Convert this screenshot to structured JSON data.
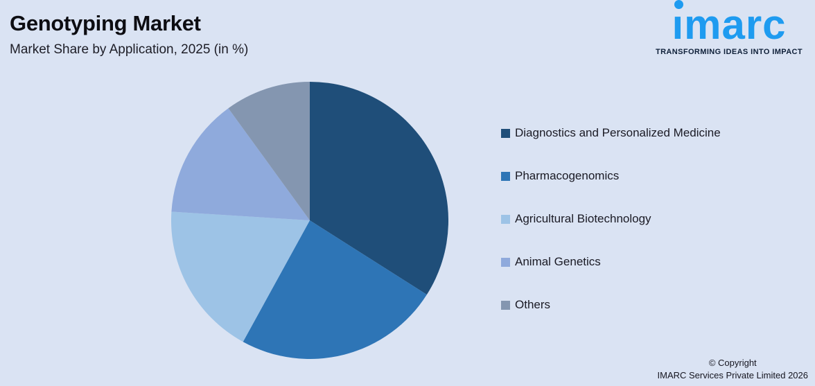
{
  "canvas": {
    "background": "#DAE3F3"
  },
  "header": {
    "title": "Genotyping Market",
    "subtitle": "Market Share by Application, 2025 (in %)"
  },
  "logo": {
    "brand": "imarc",
    "tagline": "TRANSFORMING IDEAS INTO IMPACT",
    "brand_color": "#1E9BF0",
    "tagline_color": "#0E1F38"
  },
  "chart_data": {
    "type": "pie",
    "title": "Genotyping Market",
    "subtitle": "Market Share by Application, 2025 (in %)",
    "unit": "%",
    "start_angle_deg": 0,
    "direction": "clockwise",
    "legend_position": "right",
    "slice_labels_shown": false,
    "categories": [
      "Diagnostics and Personalized Medicine",
      "Pharmacogenomics",
      "Agricultural Biotechnology",
      "Animal Genetics",
      "Others"
    ],
    "values": [
      34,
      24,
      18,
      14,
      10
    ],
    "colors": [
      "#1F4E79",
      "#2E75B6",
      "#9DC3E6",
      "#8FAADC",
      "#8496B0"
    ]
  },
  "footer": {
    "line1": "© Copyright",
    "line2": "IMARC Services Private Limited 2026"
  }
}
